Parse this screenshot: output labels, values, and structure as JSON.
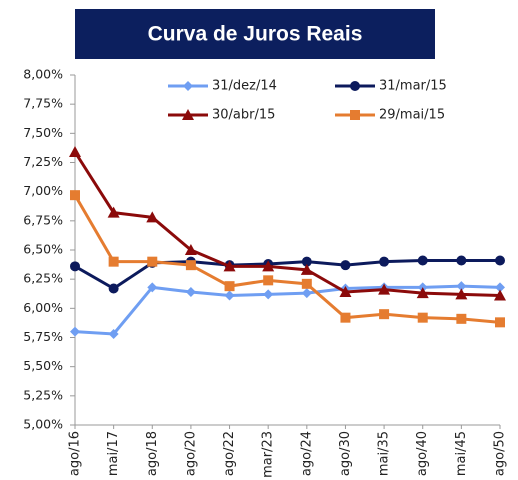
{
  "chart_data": {
    "type": "line",
    "title": "Curva de Juros Reais",
    "categories": [
      "ago/16",
      "mai/17",
      "ago/18",
      "ago/20",
      "ago/22",
      "mar/23",
      "ago/24",
      "ago/30",
      "mai/35",
      "ago/40",
      "mai/45",
      "ago/50"
    ],
    "series": [
      {
        "name": "31/dez/14",
        "color": "#6f9ef2",
        "marker": "diamond",
        "values": [
          5.8,
          5.78,
          6.18,
          6.14,
          6.11,
          6.12,
          6.13,
          6.17,
          6.18,
          6.18,
          6.19,
          6.18
        ]
      },
      {
        "name": "31/mar/15",
        "color": "#0c1a5c",
        "marker": "circle",
        "values": [
          6.36,
          6.17,
          6.39,
          6.4,
          6.37,
          6.38,
          6.4,
          6.37,
          6.4,
          6.41,
          6.41,
          6.41
        ]
      },
      {
        "name": "30/abr/15",
        "color": "#8b0a0a",
        "marker": "triangle",
        "values": [
          7.34,
          6.82,
          6.78,
          6.5,
          6.36,
          6.36,
          6.33,
          6.14,
          6.16,
          6.13,
          6.12,
          6.11
        ]
      },
      {
        "name": "29/mai/15",
        "color": "#e57c30",
        "marker": "square",
        "values": [
          6.97,
          6.4,
          6.4,
          6.37,
          6.19,
          6.24,
          6.21,
          5.92,
          5.95,
          5.92,
          5.91,
          5.88
        ]
      }
    ],
    "ylim": [
      5.0,
      8.0
    ],
    "yticks": [
      {
        "value": 5.0,
        "label": "5,00%"
      },
      {
        "value": 5.25,
        "label": "5,25%"
      },
      {
        "value": 5.5,
        "label": "5,50%"
      },
      {
        "value": 5.75,
        "label": "5,75%"
      },
      {
        "value": 6.0,
        "label": "6,00%"
      },
      {
        "value": 6.25,
        "label": "6,25%"
      },
      {
        "value": 6.5,
        "label": "6,50%"
      },
      {
        "value": 6.75,
        "label": "6,75%"
      },
      {
        "value": 7.0,
        "label": "7,00%"
      },
      {
        "value": 7.25,
        "label": "7,25%"
      },
      {
        "value": 7.5,
        "label": "7,50%"
      },
      {
        "value": 7.75,
        "label": "7,75%"
      },
      {
        "value": 8.0,
        "label": "8,00%"
      }
    ],
    "grid": false
  }
}
